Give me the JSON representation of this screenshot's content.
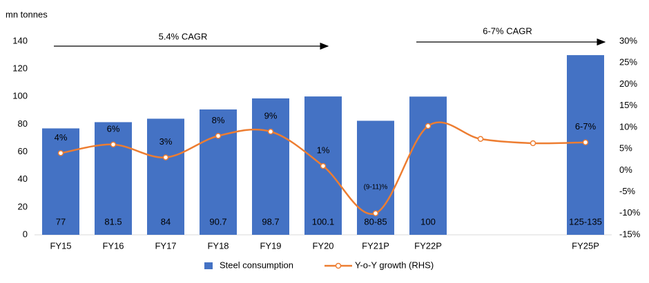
{
  "chart_data": {
    "type": "bar-line",
    "y_label": "mn tonnes",
    "annotations": [
      "5.4% CAGR",
      "6-7% CAGR"
    ],
    "categories": [
      "FY15",
      "FY16",
      "FY17",
      "FY18",
      "FY19",
      "FY20",
      "FY21P",
      "FY22P",
      null,
      null,
      "FY25P"
    ],
    "series": [
      {
        "name": "Steel consumption",
        "color": "#4472c4",
        "axis": "y",
        "values": [
          77,
          81.5,
          84,
          90.7,
          98.7,
          100.1,
          82.5,
          100,
          null,
          null,
          130
        ],
        "value_labels": [
          "77",
          "81.5",
          "84",
          "90.7",
          "98.7",
          "100.1",
          "80-85",
          "100",
          null,
          null,
          "125-135"
        ]
      },
      {
        "name": "Y-o-Y growth (RHS)",
        "color": "#ed7d31",
        "axis": "y2",
        "values": [
          4,
          6,
          3,
          8,
          9,
          1,
          -10,
          10.3,
          7.3,
          6.3,
          6.5
        ],
        "value_labels": [
          "4%",
          "6%",
          "3%",
          "8%",
          "9%",
          "1%",
          "(9-11)%",
          null,
          null,
          null,
          "6-7%"
        ]
      }
    ],
    "ylim": [
      0,
      140
    ],
    "yticks": [
      0,
      20,
      40,
      60,
      80,
      100,
      120,
      140
    ],
    "y2lim": [
      -15,
      30
    ],
    "y2ticks": [
      {
        "value": -15,
        "label": "-15%"
      },
      {
        "value": -10,
        "label": "-10%"
      },
      {
        "value": -5,
        "label": "-5%"
      },
      {
        "value": 0,
        "label": "0%"
      },
      {
        "value": 5,
        "label": "5%"
      },
      {
        "value": 10,
        "label": "10%"
      },
      {
        "value": 15,
        "label": "15%"
      },
      {
        "value": 20,
        "label": "20%"
      },
      {
        "value": 25,
        "label": "25%"
      },
      {
        "value": 30,
        "label": "30%"
      }
    ],
    "legend": "bottom"
  }
}
